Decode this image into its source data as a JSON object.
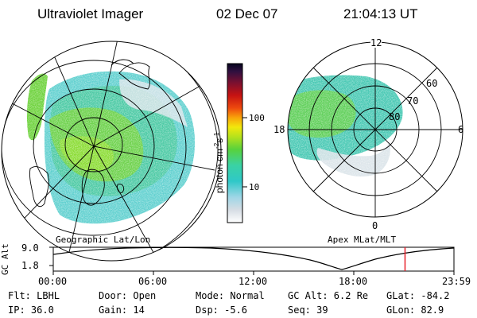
{
  "header": {
    "title": "Ultraviolet Imager",
    "date": "02 Dec 07",
    "time": "21:04:13 UT"
  },
  "left_panel": {
    "label": "Geographic Lat/Lon"
  },
  "right_panel": {
    "label": "Apex MLat/MLT",
    "mlt_labels": [
      "12",
      "18",
      "6",
      "0"
    ],
    "lat_labels": [
      "60",
      "70",
      "80"
    ]
  },
  "colorbar": {
    "label": "photon cm",
    "label_exp1": "-2",
    "label_s": "s",
    "label_exp2": "-1",
    "ticks": [
      "100",
      "10"
    ]
  },
  "alt_plot": {
    "ylabel": "GC Alt",
    "y_ticks": [
      "9.0",
      "1.8"
    ],
    "x_ticks": [
      "00:00",
      "06:00",
      "12:00",
      "18:00",
      "23:59"
    ],
    "marker_color": "#e8202a",
    "marker_time_hours": 21.07
  },
  "info": {
    "filter": "Flt: LBHL",
    "ip": "IP: 36.0",
    "door": "Door: Open",
    "gain": "Gain: 14",
    "mode": "Mode: Normal",
    "dsp": "Dsp:  -5.6",
    "gc_alt": "GC Alt: 6.2 Re",
    "seq": "Seq: 39",
    "glat": "GLat: -84.2",
    "glon": "GLon:  82.9"
  }
}
